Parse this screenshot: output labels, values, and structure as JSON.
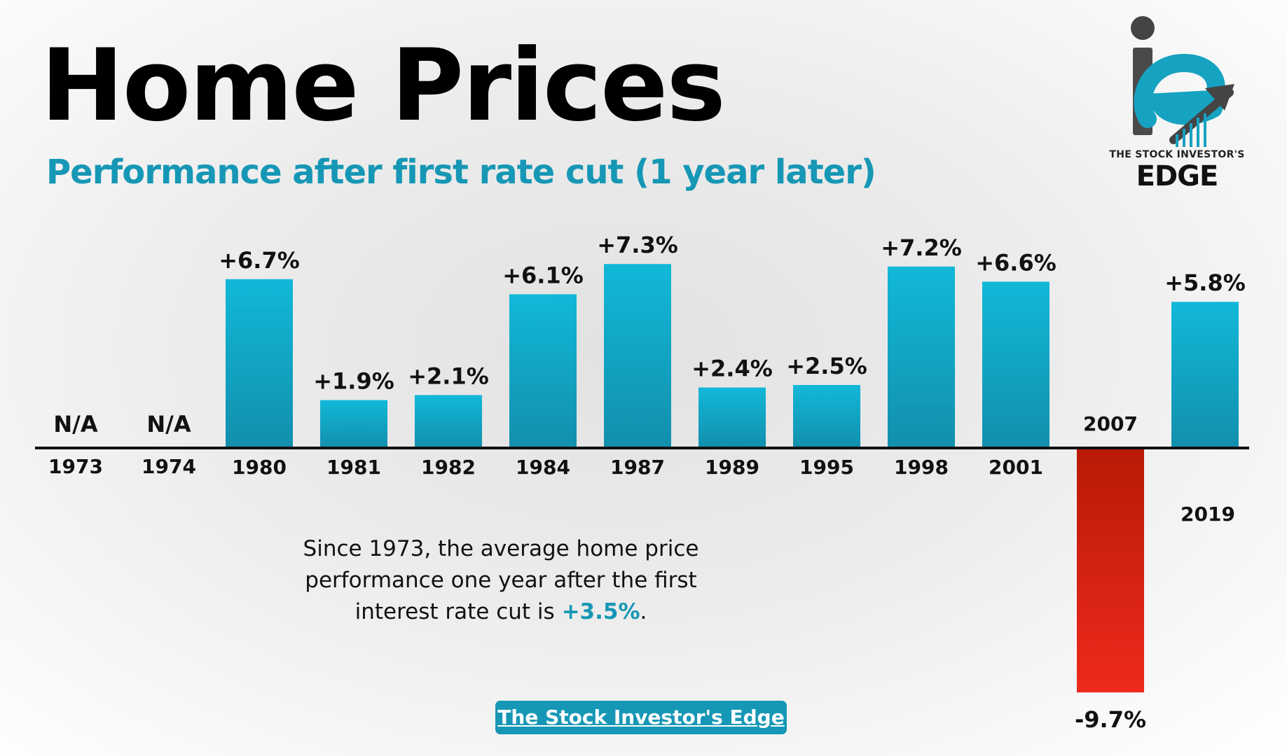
{
  "header": {
    "title": "Home Prices",
    "subtitle": "Performance after first rate cut (1 year later)"
  },
  "logo": {
    "icon": "ie-monogram-arrow-icon",
    "caption": "THE STOCK INVESTOR'S",
    "wordmark": "EDGE"
  },
  "note": {
    "text_before": "Since 1973, the average home price performance one year after the first interest rate cut is ",
    "highlight": "+3.5%",
    "text_after": "."
  },
  "brand_label": "The Stock Investor's Edge",
  "colors": {
    "positive_top": "#12b8d8",
    "positive_bottom": "#128fad",
    "negative_top": "#b81a05",
    "negative_bottom": "#ee2a1c",
    "accent": "#1697b5"
  },
  "chart_data": {
    "type": "bar",
    "title": "",
    "xlabel": "",
    "ylabel": "",
    "grid": false,
    "legend": "none",
    "categories": [
      "1973",
      "1974",
      "1980",
      "1981",
      "1982",
      "1984",
      "1987",
      "1989",
      "1995",
      "1998",
      "2001",
      "2007",
      "2019"
    ],
    "values": [
      null,
      null,
      6.7,
      1.9,
      2.1,
      6.1,
      7.3,
      2.4,
      2.5,
      7.2,
      6.6,
      -9.7,
      5.8
    ],
    "data_labels": [
      "N/A",
      "N/A",
      "+6.7%",
      "+1.9%",
      "+2.1%",
      "+6.1%",
      "+7.3%",
      "+2.4%",
      "+2.5%",
      "+7.2%",
      "+6.6%",
      "-9.7%",
      "+5.8%"
    ],
    "ylim": [
      -9.7,
      7.3
    ]
  }
}
